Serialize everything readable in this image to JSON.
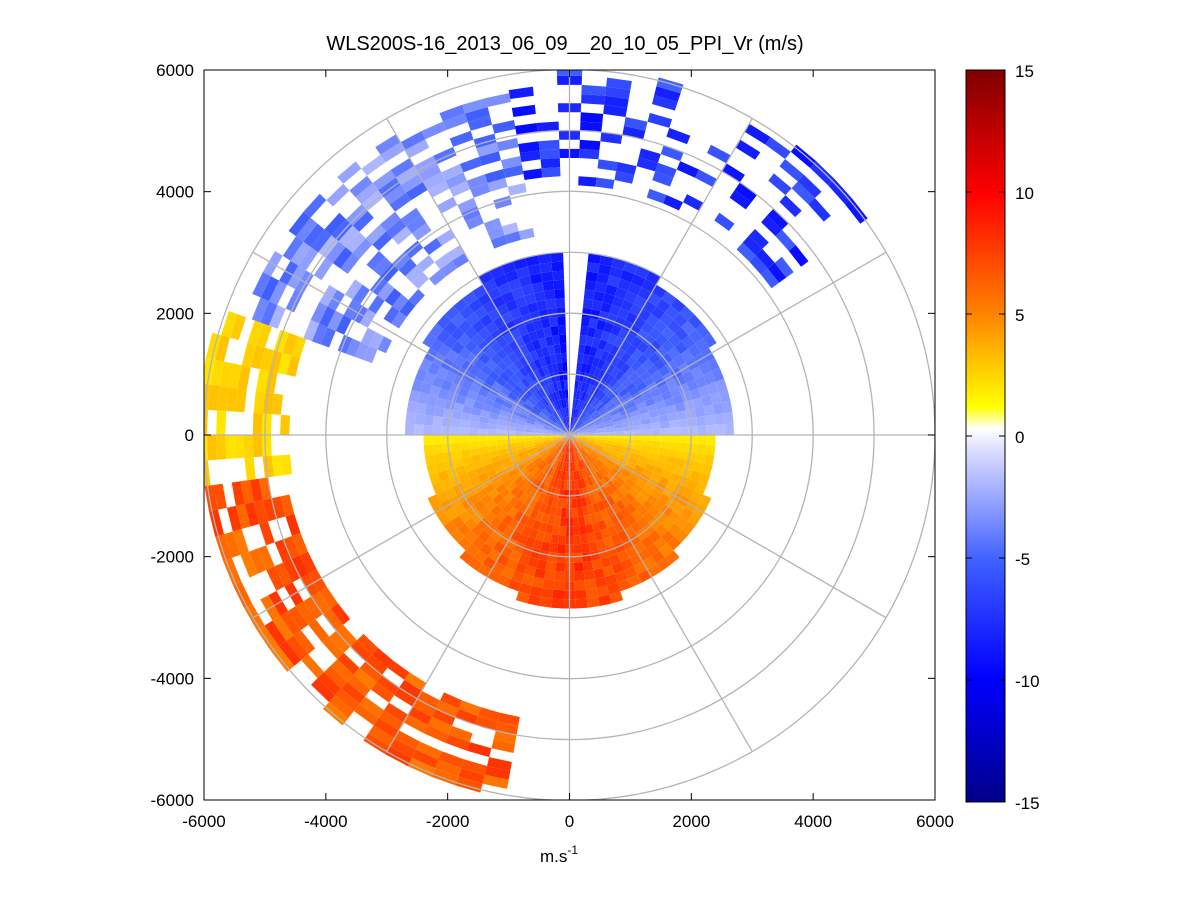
{
  "chart_data": {
    "type": "heatmap",
    "subtype": "polar-ppi",
    "title": "WLS200S-16_2013_06_09__20_10_05_PPI_Vr (m/s)",
    "xlabel": "m.s",
    "xlabel_superscript": "-1",
    "ylabel": "",
    "xlim": [
      -6000,
      6000
    ],
    "ylim": [
      -6000,
      6000
    ],
    "xticks": [
      -6000,
      -4000,
      -2000,
      0,
      2000,
      4000,
      6000
    ],
    "yticks": [
      6000,
      4000,
      2000,
      0,
      -2000,
      -4000,
      -6000
    ],
    "xtick_labels": [
      "-6000",
      "-4000",
      "-2000",
      "0",
      "2000",
      "4000",
      "6000"
    ],
    "ytick_labels": [
      "6000",
      "4000",
      "2000",
      "0",
      "-2000",
      "-4000",
      "-6000"
    ],
    "range_rings_m": [
      1000,
      2000,
      3000,
      4000,
      5000,
      6000
    ],
    "spokes_deg": [
      0,
      30,
      60,
      90,
      120,
      150,
      180,
      210,
      240,
      270,
      300,
      330
    ],
    "colorbar": {
      "min": -15,
      "max": 15,
      "ticks": [
        15,
        10,
        5,
        0,
        -5,
        -10,
        -15
      ],
      "tick_labels": [
        "15",
        "10",
        "5",
        "0",
        "-5",
        "-10",
        "-15"
      ],
      "colors": [
        "#00008b",
        "#0000ff",
        "#dcdcff",
        "#ffffff",
        "#ffff00",
        "#ff0000",
        "#800000"
      ]
    },
    "velocity_summary": {
      "northern_half_inner_max_range_m": 3000,
      "northern_half_inner_vr_ms": -9,
      "southern_half_inner_max_range_m": 2800,
      "southern_half_inner_vr_ms": 8,
      "outer_band_nw_vr_ms": -4,
      "outer_band_w_vr_ms": 2,
      "outer_band_sw_vr_ms": 6,
      "outer_band_ne_vr_ms": -8
    }
  }
}
